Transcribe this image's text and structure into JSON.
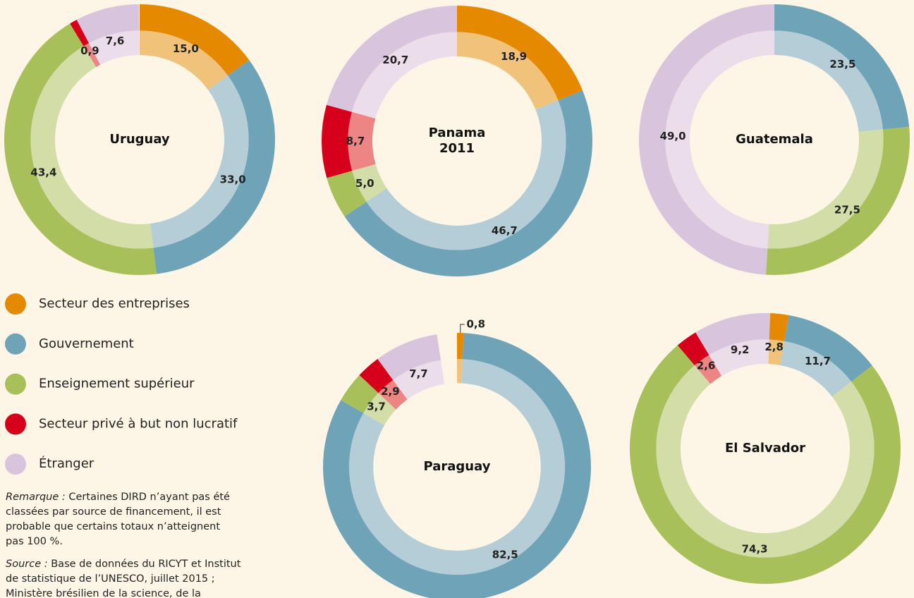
{
  "chart_data": [
    {
      "type": "pie",
      "title": "Uruguay",
      "values": [
        15.0,
        33.0,
        43.4,
        0.9,
        7.6
      ],
      "value_labels": [
        "15,0",
        "33,0",
        "43,4",
        "0,9",
        "7,6"
      ]
    },
    {
      "type": "pie",
      "title": "Panama",
      "subtitle": "2011",
      "values": [
        18.9,
        46.7,
        5.0,
        8.7,
        20.7
      ],
      "value_labels": [
        "18,9",
        "46,7",
        "5,0",
        "8,7",
        "20,7"
      ]
    },
    {
      "type": "pie",
      "title": "Guatemala",
      "values": [
        null,
        23.5,
        27.5,
        null,
        49.0
      ],
      "value_labels": [
        null,
        "23,5",
        "27,5",
        null,
        "49,0"
      ]
    },
    {
      "type": "pie",
      "title": "Paraguay",
      "values": [
        0.8,
        82.5,
        3.7,
        2.9,
        7.7
      ],
      "value_labels": [
        "0,8",
        "82,5",
        "3,7",
        "2,9",
        "7,7"
      ]
    },
    {
      "type": "pie",
      "title": "El Salvador",
      "values": [
        2.8,
        11.7,
        74.3,
        2.6,
        9.2
      ],
      "value_labels": [
        "2,8",
        "11,7",
        "74,3",
        "2,6",
        "9,2"
      ]
    }
  ],
  "legend": {
    "items": [
      "Secteur des entreprises",
      "Gouvernement",
      "Enseignement supérieur",
      "Secteur privé à but non lucratif",
      "Étranger"
    ],
    "colors": [
      "#e58a00",
      "#6fa3b8",
      "#a8c05a",
      "#d7001a",
      "#d8c4dd"
    ],
    "light_colors": [
      "#f1c27a",
      "#b5cdd6",
      "#d3dda8",
      "#ee8585",
      "#ebdde9"
    ]
  },
  "note": {
    "label": "Remarque :",
    "text": "Certaines DIRD n’ayant pas été classées par source de financement, il est probable que certains totaux n’atteignent pas 100 %."
  },
  "source": {
    "label": "Source :",
    "text": "Base de données du RICYT et Institut de statistique de l’UNESCO, juillet 2015 ; Ministère brésilien de la science, de la technologie et de l’innovation"
  }
}
